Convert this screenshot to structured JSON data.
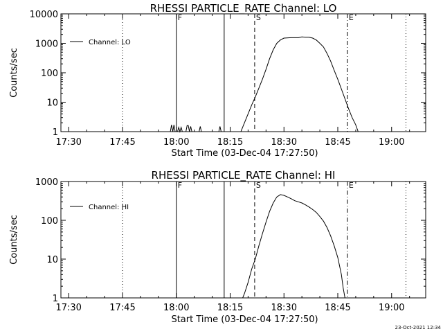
{
  "footer": {
    "timestamp": "23-Oct-2021 12:34"
  },
  "chart_data": [
    {
      "type": "line",
      "title": "RHESSI PARTICLE_RATE Channel: LO",
      "xlabel": "Start Time (03-Dec-04 17:27:50)",
      "ylabel": "Counts/sec",
      "xlim": [
        "17:27:50",
        "19:09:30"
      ],
      "x_ticks": [
        "17:30",
        "17:45",
        "18:00",
        "18:15",
        "18:30",
        "18:45",
        "19:00"
      ],
      "y_scale": "log",
      "ylim": [
        1,
        10000
      ],
      "y_ticks": [
        "1",
        "10",
        "100",
        "1000",
        "10000"
      ],
      "legend": {
        "position": "top-left",
        "entries": [
          "Channel: LO"
        ]
      },
      "markers": [
        {
          "label": "F",
          "time": "18:00:00",
          "style": "solid"
        },
        {
          "label": "",
          "time": "18:13:20",
          "style": "solid"
        },
        {
          "label": "S",
          "time": "18:21:50",
          "style": "dashed"
        },
        {
          "label": "E",
          "time": "18:47:40",
          "style": "dashdot"
        },
        {
          "label": "",
          "time": "17:45:00",
          "style": "dotted"
        },
        {
          "label": "",
          "time": "19:04:00",
          "style": "dotted"
        }
      ],
      "series": [
        {
          "name": "Channel: LO",
          "points": [
            [
              "17:58:20",
              1
            ],
            [
              "17:58:40",
              1.7
            ],
            [
              "17:59:00",
              1
            ],
            [
              "17:59:20",
              1.7
            ],
            [
              "17:59:40",
              1
            ],
            [
              "18:00:20",
              1
            ],
            [
              "18:00:40",
              1.4
            ],
            [
              "18:01:00",
              1
            ],
            [
              "18:01:20",
              1.4
            ],
            [
              "18:01:40",
              1
            ],
            [
              "18:02:40",
              1
            ],
            [
              "18:03:00",
              1.6
            ],
            [
              "18:03:20",
              1.6
            ],
            [
              "18:03:40",
              1
            ],
            [
              "18:04:00",
              1.5
            ],
            [
              "18:04:20",
              1
            ],
            [
              "18:06:20",
              1
            ],
            [
              "18:06:40",
              1.5
            ],
            [
              "18:07:00",
              1
            ],
            [
              "18:11:50",
              1
            ],
            [
              "18:12:10",
              1.5
            ],
            [
              "18:12:30",
              1
            ],
            [
              "18:18:00",
              1
            ],
            [
              "18:19:00",
              2
            ],
            [
              "18:20:00",
              4
            ],
            [
              "18:21:00",
              8
            ],
            [
              "18:22:00",
              15
            ],
            [
              "18:23:00",
              30
            ],
            [
              "18:24:00",
              60
            ],
            [
              "18:25:00",
              130
            ],
            [
              "18:26:00",
              300
            ],
            [
              "18:27:00",
              600
            ],
            [
              "18:28:00",
              1000
            ],
            [
              "18:29:00",
              1300
            ],
            [
              "18:30:00",
              1500
            ],
            [
              "18:32:00",
              1550
            ],
            [
              "18:34:00",
              1550
            ],
            [
              "18:35:00",
              1650
            ],
            [
              "18:36:00",
              1600
            ],
            [
              "18:37:00",
              1600
            ],
            [
              "18:38:00",
              1500
            ],
            [
              "18:39:00",
              1300
            ],
            [
              "18:40:00",
              1000
            ],
            [
              "18:41:00",
              750
            ],
            [
              "18:42:00",
              450
            ],
            [
              "18:43:00",
              250
            ],
            [
              "18:44:00",
              120
            ],
            [
              "18:45:00",
              60
            ],
            [
              "18:46:00",
              28
            ],
            [
              "18:47:00",
              13
            ],
            [
              "18:48:00",
              6
            ],
            [
              "18:49:00",
              3
            ],
            [
              "18:50:00",
              1.7
            ],
            [
              "18:50:40",
              1
            ]
          ]
        }
      ]
    },
    {
      "type": "line",
      "title": "RHESSI PARTICLE_RATE Channel: HI",
      "xlabel": "Start Time (03-Dec-04 17:27:50)",
      "ylabel": "Counts/sec",
      "xlim": [
        "17:27:50",
        "19:09:30"
      ],
      "x_ticks": [
        "17:30",
        "17:45",
        "18:00",
        "18:15",
        "18:30",
        "18:45",
        "19:00"
      ],
      "y_scale": "log",
      "ylim": [
        1,
        1000
      ],
      "y_ticks": [
        "1",
        "10",
        "100",
        "1000"
      ],
      "legend": {
        "position": "top-left",
        "entries": [
          "Channel: HI"
        ]
      },
      "markers": [
        {
          "label": "F",
          "time": "18:00:00",
          "style": "solid"
        },
        {
          "label": "",
          "time": "18:13:20",
          "style": "solid"
        },
        {
          "label": "S",
          "time": "18:21:50",
          "style": "dashed"
        },
        {
          "label": "E",
          "time": "18:47:40",
          "style": "dashdot"
        },
        {
          "label": "",
          "time": "17:45:00",
          "style": "dotted"
        },
        {
          "label": "",
          "time": "19:04:00",
          "style": "dotted"
        }
      ],
      "series": [
        {
          "name": "Channel: HI",
          "points": [
            [
              "18:18:30",
              1
            ],
            [
              "18:19:00",
              1.3
            ],
            [
              "18:20:00",
              2.5
            ],
            [
              "18:21:00",
              5.5
            ],
            [
              "18:22:00",
              10
            ],
            [
              "18:23:00",
              22
            ],
            [
              "18:24:00",
              45
            ],
            [
              "18:25:00",
              90
            ],
            [
              "18:26:00",
              170
            ],
            [
              "18:27:00",
              280
            ],
            [
              "18:28:00",
              400
            ],
            [
              "18:29:00",
              460
            ],
            [
              "18:30:00",
              440
            ],
            [
              "18:31:00",
              400
            ],
            [
              "18:32:00",
              360
            ],
            [
              "18:33:00",
              320
            ],
            [
              "18:34:00",
              300
            ],
            [
              "18:35:00",
              280
            ],
            [
              "18:36:00",
              250
            ],
            [
              "18:37:00",
              220
            ],
            [
              "18:38:00",
              190
            ],
            [
              "18:39:00",
              160
            ],
            [
              "18:40:00",
              125
            ],
            [
              "18:41:00",
              95
            ],
            [
              "18:42:00",
              65
            ],
            [
              "18:43:00",
              40
            ],
            [
              "18:44:00",
              22
            ],
            [
              "18:45:00",
              11
            ],
            [
              "18:46:00",
              4
            ],
            [
              "18:46:30",
              1.8
            ],
            [
              "18:47:00",
              1
            ]
          ]
        }
      ]
    }
  ]
}
